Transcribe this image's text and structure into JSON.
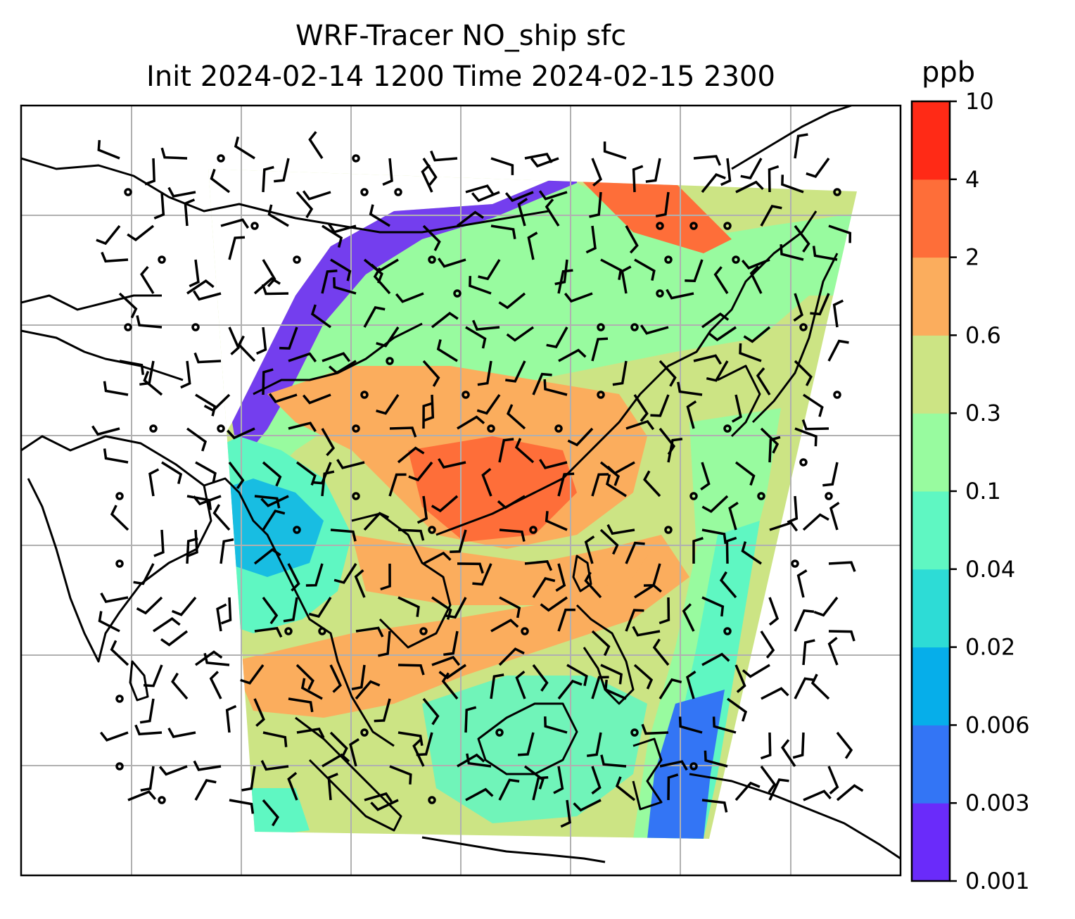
{
  "title_line1": "WRF-Tracer NO_ship sfc",
  "title_line2": "Init 2024-02-14 1200 Time 2024-02-15 2300",
  "colorbar": {
    "unit": "ppb",
    "levels": [
      "0.001",
      "0.003",
      "0.006",
      "0.02",
      "0.04",
      "0.1",
      "0.3",
      "0.6",
      "2",
      "4",
      "10"
    ],
    "colors": [
      "#6a2bfa",
      "#3375f5",
      "#06aeea",
      "#2ddcd6",
      "#5ff7c2",
      "#98fb9f",
      "#cce484",
      "#fbad5d",
      "#fe6e39",
      "#ff2a16"
    ]
  },
  "colors": {
    "coast": "#000000",
    "grid": "#b0b0b0",
    "barb": "#000000"
  }
}
